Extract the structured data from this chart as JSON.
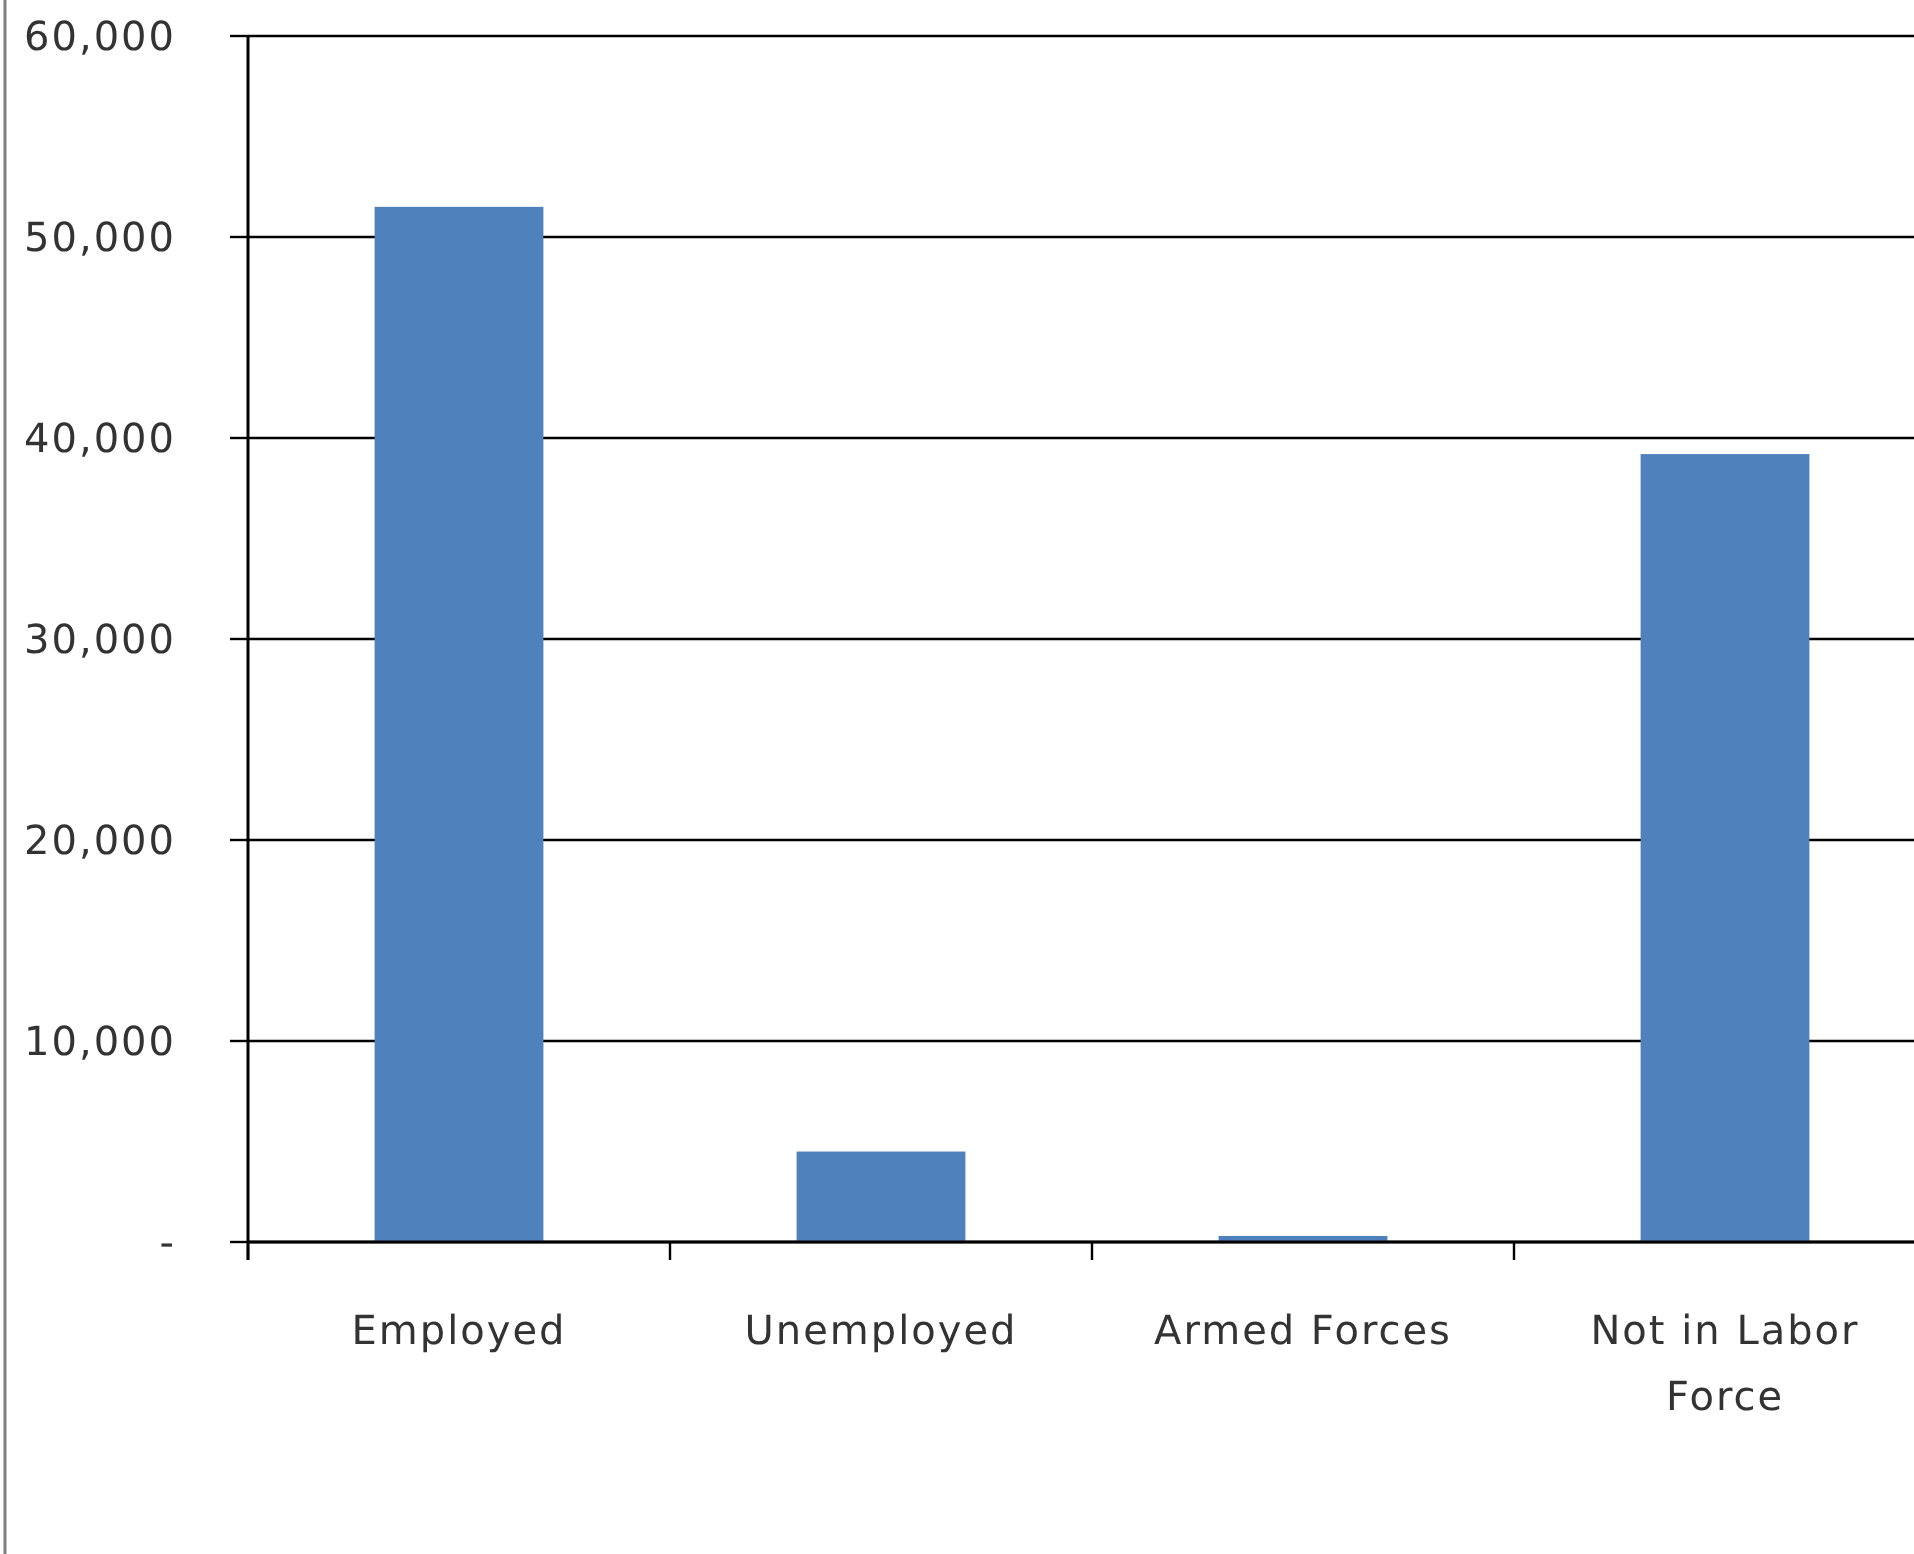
{
  "chart_data": {
    "type": "bar",
    "categories": [
      "Employed",
      "Unemployed",
      "Armed Forces",
      "Not in Labor Force"
    ],
    "values": [
      51500,
      4500,
      300,
      39200
    ],
    "color": "#4f81bd",
    "ylim": [
      0,
      60000
    ],
    "yticks": [
      {
        "value": 0,
        "label": "-"
      },
      {
        "value": 10000,
        "label": "10,000"
      },
      {
        "value": 20000,
        "label": "20,000"
      },
      {
        "value": 30000,
        "label": "30,000"
      },
      {
        "value": 40000,
        "label": "40,000"
      },
      {
        "value": 50000,
        "label": "50,000"
      },
      {
        "value": 60000,
        "label": "60,000"
      }
    ],
    "grid": "y"
  }
}
